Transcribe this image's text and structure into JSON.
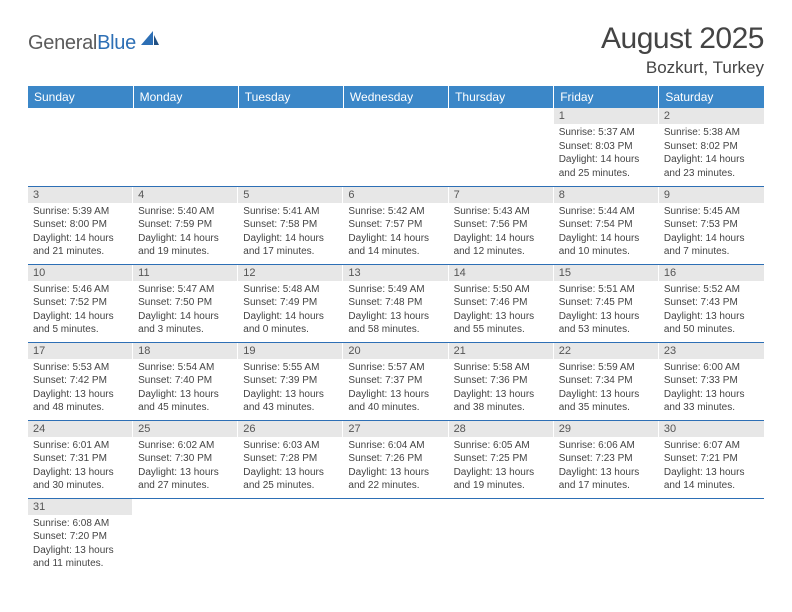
{
  "logo": {
    "general": "General",
    "blue": "Blue"
  },
  "title": "August 2025",
  "location": "Bozkurt, Turkey",
  "colors": {
    "header_bg": "#3b87c8",
    "header_text": "#ffffff",
    "daynum_bg": "#e7e7e7",
    "border": "#2d6fb5",
    "logo_gray": "#5b5b5b",
    "logo_blue": "#2d6fb5"
  },
  "weekdays": [
    "Sunday",
    "Monday",
    "Tuesday",
    "Wednesday",
    "Thursday",
    "Friday",
    "Saturday"
  ],
  "weeks": [
    [
      null,
      null,
      null,
      null,
      null,
      {
        "n": "1",
        "sr": "Sunrise: 5:37 AM",
        "ss": "Sunset: 8:03 PM",
        "dl1": "Daylight: 14 hours",
        "dl2": "and 25 minutes."
      },
      {
        "n": "2",
        "sr": "Sunrise: 5:38 AM",
        "ss": "Sunset: 8:02 PM",
        "dl1": "Daylight: 14 hours",
        "dl2": "and 23 minutes."
      }
    ],
    [
      {
        "n": "3",
        "sr": "Sunrise: 5:39 AM",
        "ss": "Sunset: 8:00 PM",
        "dl1": "Daylight: 14 hours",
        "dl2": "and 21 minutes."
      },
      {
        "n": "4",
        "sr": "Sunrise: 5:40 AM",
        "ss": "Sunset: 7:59 PM",
        "dl1": "Daylight: 14 hours",
        "dl2": "and 19 minutes."
      },
      {
        "n": "5",
        "sr": "Sunrise: 5:41 AM",
        "ss": "Sunset: 7:58 PM",
        "dl1": "Daylight: 14 hours",
        "dl2": "and 17 minutes."
      },
      {
        "n": "6",
        "sr": "Sunrise: 5:42 AM",
        "ss": "Sunset: 7:57 PM",
        "dl1": "Daylight: 14 hours",
        "dl2": "and 14 minutes."
      },
      {
        "n": "7",
        "sr": "Sunrise: 5:43 AM",
        "ss": "Sunset: 7:56 PM",
        "dl1": "Daylight: 14 hours",
        "dl2": "and 12 minutes."
      },
      {
        "n": "8",
        "sr": "Sunrise: 5:44 AM",
        "ss": "Sunset: 7:54 PM",
        "dl1": "Daylight: 14 hours",
        "dl2": "and 10 minutes."
      },
      {
        "n": "9",
        "sr": "Sunrise: 5:45 AM",
        "ss": "Sunset: 7:53 PM",
        "dl1": "Daylight: 14 hours",
        "dl2": "and 7 minutes."
      }
    ],
    [
      {
        "n": "10",
        "sr": "Sunrise: 5:46 AM",
        "ss": "Sunset: 7:52 PM",
        "dl1": "Daylight: 14 hours",
        "dl2": "and 5 minutes."
      },
      {
        "n": "11",
        "sr": "Sunrise: 5:47 AM",
        "ss": "Sunset: 7:50 PM",
        "dl1": "Daylight: 14 hours",
        "dl2": "and 3 minutes."
      },
      {
        "n": "12",
        "sr": "Sunrise: 5:48 AM",
        "ss": "Sunset: 7:49 PM",
        "dl1": "Daylight: 14 hours",
        "dl2": "and 0 minutes."
      },
      {
        "n": "13",
        "sr": "Sunrise: 5:49 AM",
        "ss": "Sunset: 7:48 PM",
        "dl1": "Daylight: 13 hours",
        "dl2": "and 58 minutes."
      },
      {
        "n": "14",
        "sr": "Sunrise: 5:50 AM",
        "ss": "Sunset: 7:46 PM",
        "dl1": "Daylight: 13 hours",
        "dl2": "and 55 minutes."
      },
      {
        "n": "15",
        "sr": "Sunrise: 5:51 AM",
        "ss": "Sunset: 7:45 PM",
        "dl1": "Daylight: 13 hours",
        "dl2": "and 53 minutes."
      },
      {
        "n": "16",
        "sr": "Sunrise: 5:52 AM",
        "ss": "Sunset: 7:43 PM",
        "dl1": "Daylight: 13 hours",
        "dl2": "and 50 minutes."
      }
    ],
    [
      {
        "n": "17",
        "sr": "Sunrise: 5:53 AM",
        "ss": "Sunset: 7:42 PM",
        "dl1": "Daylight: 13 hours",
        "dl2": "and 48 minutes."
      },
      {
        "n": "18",
        "sr": "Sunrise: 5:54 AM",
        "ss": "Sunset: 7:40 PM",
        "dl1": "Daylight: 13 hours",
        "dl2": "and 45 minutes."
      },
      {
        "n": "19",
        "sr": "Sunrise: 5:55 AM",
        "ss": "Sunset: 7:39 PM",
        "dl1": "Daylight: 13 hours",
        "dl2": "and 43 minutes."
      },
      {
        "n": "20",
        "sr": "Sunrise: 5:57 AM",
        "ss": "Sunset: 7:37 PM",
        "dl1": "Daylight: 13 hours",
        "dl2": "and 40 minutes."
      },
      {
        "n": "21",
        "sr": "Sunrise: 5:58 AM",
        "ss": "Sunset: 7:36 PM",
        "dl1": "Daylight: 13 hours",
        "dl2": "and 38 minutes."
      },
      {
        "n": "22",
        "sr": "Sunrise: 5:59 AM",
        "ss": "Sunset: 7:34 PM",
        "dl1": "Daylight: 13 hours",
        "dl2": "and 35 minutes."
      },
      {
        "n": "23",
        "sr": "Sunrise: 6:00 AM",
        "ss": "Sunset: 7:33 PM",
        "dl1": "Daylight: 13 hours",
        "dl2": "and 33 minutes."
      }
    ],
    [
      {
        "n": "24",
        "sr": "Sunrise: 6:01 AM",
        "ss": "Sunset: 7:31 PM",
        "dl1": "Daylight: 13 hours",
        "dl2": "and 30 minutes."
      },
      {
        "n": "25",
        "sr": "Sunrise: 6:02 AM",
        "ss": "Sunset: 7:30 PM",
        "dl1": "Daylight: 13 hours",
        "dl2": "and 27 minutes."
      },
      {
        "n": "26",
        "sr": "Sunrise: 6:03 AM",
        "ss": "Sunset: 7:28 PM",
        "dl1": "Daylight: 13 hours",
        "dl2": "and 25 minutes."
      },
      {
        "n": "27",
        "sr": "Sunrise: 6:04 AM",
        "ss": "Sunset: 7:26 PM",
        "dl1": "Daylight: 13 hours",
        "dl2": "and 22 minutes."
      },
      {
        "n": "28",
        "sr": "Sunrise: 6:05 AM",
        "ss": "Sunset: 7:25 PM",
        "dl1": "Daylight: 13 hours",
        "dl2": "and 19 minutes."
      },
      {
        "n": "29",
        "sr": "Sunrise: 6:06 AM",
        "ss": "Sunset: 7:23 PM",
        "dl1": "Daylight: 13 hours",
        "dl2": "and 17 minutes."
      },
      {
        "n": "30",
        "sr": "Sunrise: 6:07 AM",
        "ss": "Sunset: 7:21 PM",
        "dl1": "Daylight: 13 hours",
        "dl2": "and 14 minutes."
      }
    ],
    [
      {
        "n": "31",
        "sr": "Sunrise: 6:08 AM",
        "ss": "Sunset: 7:20 PM",
        "dl1": "Daylight: 13 hours",
        "dl2": "and 11 minutes."
      },
      null,
      null,
      null,
      null,
      null,
      null
    ]
  ]
}
